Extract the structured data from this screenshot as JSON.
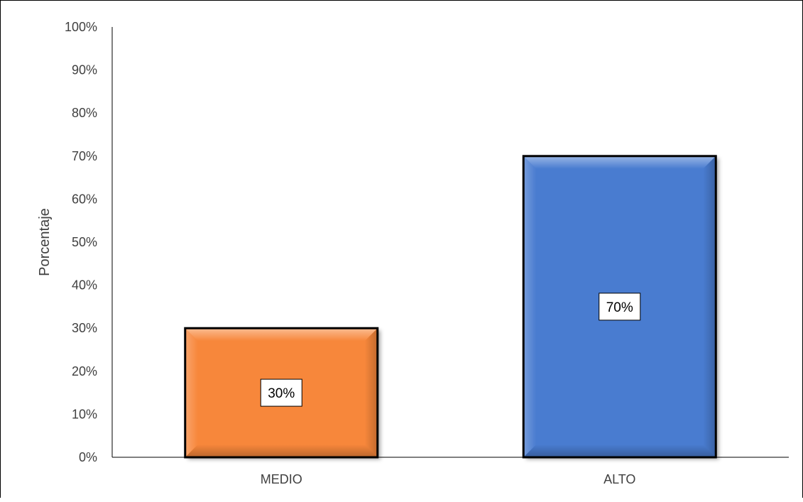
{
  "chart_data": {
    "type": "bar",
    "categories": [
      "MEDIO",
      "ALTO"
    ],
    "values": [
      30,
      70
    ],
    "value_labels": [
      "30%",
      "70%"
    ],
    "colors": [
      "#F7873A",
      "#4A7BD0"
    ],
    "ylabel": "Porcentaje",
    "xlabel": "",
    "ylim": [
      0,
      100
    ],
    "yticks": [
      "0%",
      "10%",
      "20%",
      "30%",
      "40%",
      "50%",
      "60%",
      "70%",
      "80%",
      "90%",
      "100%"
    ],
    "grid": false,
    "legend": "none"
  }
}
